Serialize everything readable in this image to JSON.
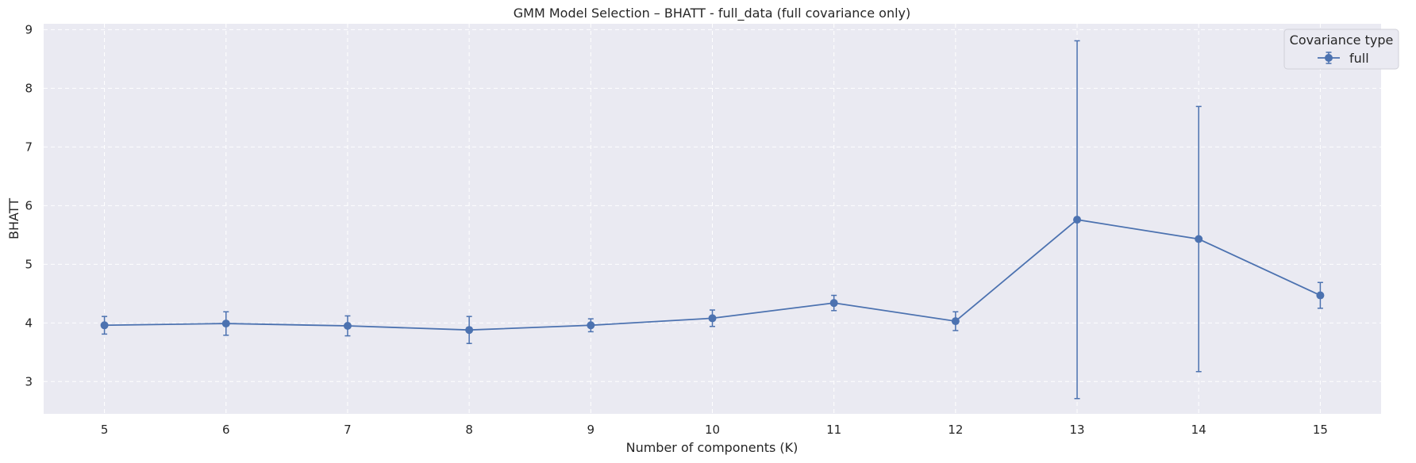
{
  "chart_data": {
    "type": "line",
    "title": "GMM Model Selection – BHATT - full_data (full covariance only)",
    "xlabel": "Number of components (K)",
    "ylabel": "BHATT",
    "x": [
      5,
      6,
      7,
      8,
      9,
      10,
      11,
      12,
      13,
      14,
      15
    ],
    "xticks": [
      "5",
      "6",
      "7",
      "8",
      "9",
      "10",
      "11",
      "12",
      "13",
      "14",
      "15"
    ],
    "yticks": [
      "3",
      "4",
      "5",
      "6",
      "7",
      "8",
      "9"
    ],
    "xlim": [
      4.5,
      15.5
    ],
    "ylim": [
      2.45,
      9.1
    ],
    "grid": true,
    "legend": {
      "title": "Covariance type",
      "placement": "top-right"
    },
    "series": [
      {
        "name": "full",
        "color": "#4c72b0",
        "marker": "circle",
        "values": [
          3.96,
          3.99,
          3.95,
          3.88,
          3.96,
          4.08,
          4.34,
          4.03,
          5.76,
          5.43,
          4.47
        ],
        "err_low": [
          3.81,
          3.79,
          3.78,
          3.65,
          3.85,
          3.94,
          4.21,
          3.87,
          2.71,
          3.17,
          4.25
        ],
        "err_high": [
          4.11,
          4.19,
          4.12,
          4.11,
          4.07,
          4.22,
          4.47,
          4.19,
          8.81,
          7.69,
          4.69
        ]
      }
    ]
  }
}
